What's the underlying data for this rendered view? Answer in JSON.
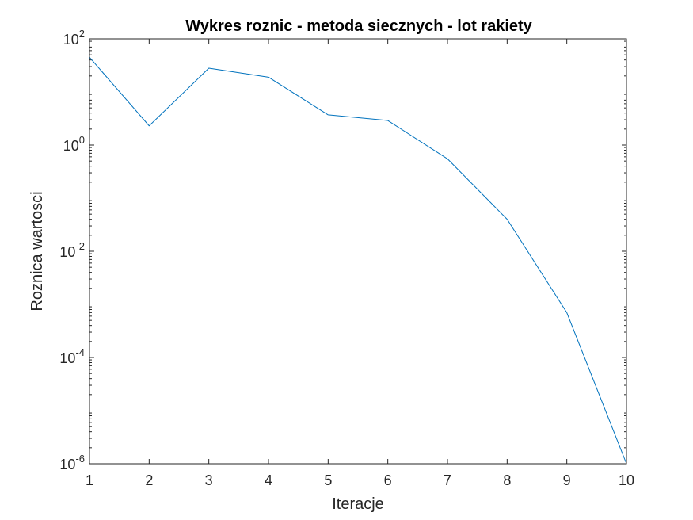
{
  "chart_data": {
    "type": "line",
    "title": "Wykres roznic - metoda siecznych - lot rakiety",
    "xlabel": "Iteracje",
    "ylabel": "Roznica wartosci",
    "xlim": [
      1,
      10
    ],
    "ylim": [
      1e-06,
      100
    ],
    "yscale": "log",
    "grid": false,
    "x_ticks": [
      "1",
      "2",
      "3",
      "4",
      "5",
      "6",
      "7",
      "8",
      "9",
      "10"
    ],
    "y_ticks": [
      {
        "base": "10",
        "exp": "2"
      },
      {
        "base": "10",
        "exp": "0"
      },
      {
        "base": "10",
        "exp": "-2"
      },
      {
        "base": "10",
        "exp": "-4"
      },
      {
        "base": "10",
        "exp": "-6"
      }
    ],
    "series": [
      {
        "color": "#0072BD",
        "x": [
          1,
          2,
          3,
          4,
          5,
          6,
          7,
          8,
          9,
          10
        ],
        "y": [
          45,
          2.3,
          28,
          19,
          3.7,
          2.9,
          0.55,
          0.04,
          0.0007,
          1e-06
        ]
      }
    ]
  }
}
